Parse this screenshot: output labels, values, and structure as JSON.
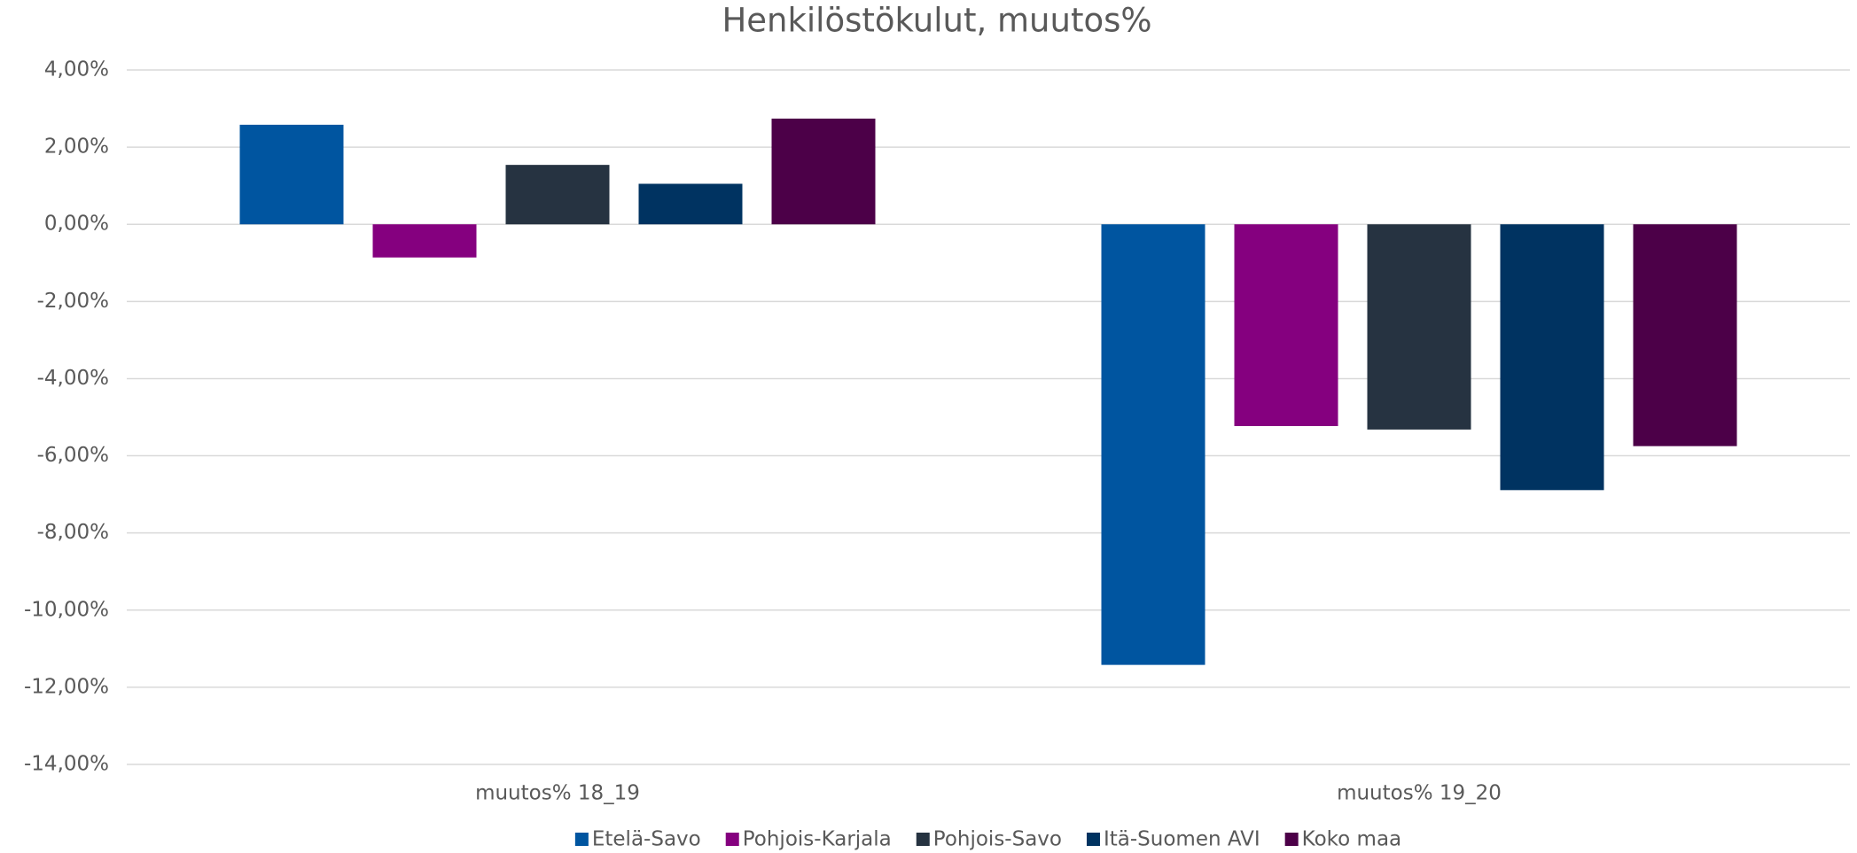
{
  "chart_data": {
    "type": "bar",
    "title": "Henkilöstökulut, muutos%",
    "categories": [
      "muutos% 18_19",
      "muutos% 19_20"
    ],
    "series": [
      {
        "name": "Etelä-Savo",
        "color": "#0055a0",
        "values": [
          2.58,
          -11.42
        ]
      },
      {
        "name": "Pohjois-Karjala",
        "color": "#85007f",
        "values": [
          -0.86,
          -5.23
        ]
      },
      {
        "name": "Pohjois-Savo",
        "color": "#263341",
        "values": [
          1.54,
          -5.32
        ]
      },
      {
        "name": "Itä-Suomen AVI",
        "color": "#003361",
        "values": [
          1.05,
          -6.89
        ]
      },
      {
        "name": "Koko maa",
        "color": "#4c0048",
        "values": [
          2.74,
          -5.75
        ]
      }
    ],
    "ylim": [
      -14,
      4
    ],
    "yticks": [
      {
        "value": -14,
        "label": "-14,00%"
      },
      {
        "value": -12,
        "label": "-12,00%"
      },
      {
        "value": -10,
        "label": "-10,00%"
      },
      {
        "value": -8,
        "label": "-8,00%"
      },
      {
        "value": -6,
        "label": "-6,00%"
      },
      {
        "value": -4,
        "label": "-4,00%"
      },
      {
        "value": -2,
        "label": "-2,00%"
      },
      {
        "value": 0,
        "label": "0,00%"
      },
      {
        "value": 2,
        "label": "2,00%"
      },
      {
        "value": 4,
        "label": "4,00%"
      }
    ],
    "grid": true,
    "legend": "bottom"
  }
}
